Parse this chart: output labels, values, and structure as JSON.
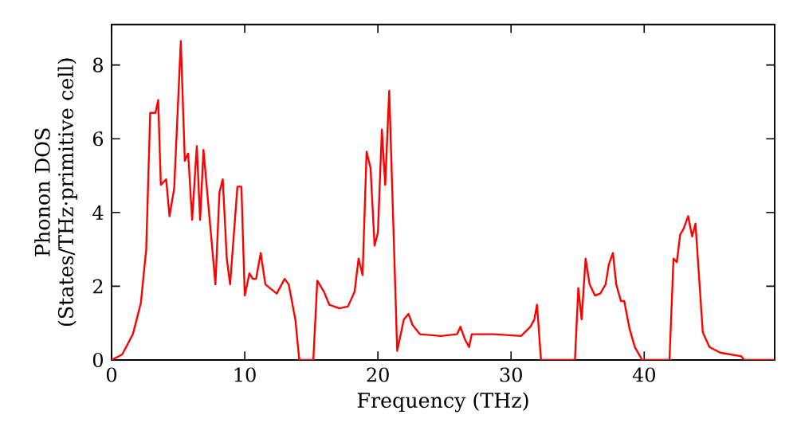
{
  "chart_data": {
    "type": "line",
    "xlabel": "Frequency (THz)",
    "ylabel": "Phonon DOS (States/THz·primitive cell)",
    "xlim": [
      0,
      49.8
    ],
    "ylim": [
      0,
      9.1
    ],
    "xticks": [
      0,
      10,
      20,
      30,
      40
    ],
    "yticks": [
      0,
      2,
      4,
      6,
      8
    ],
    "marker": "none",
    "line_style": "solid",
    "series": [
      {
        "color": "#ff0000",
        "x": [
          0,
          0.8,
          1.6,
          2.2,
          2.6,
          2.9,
          3.3,
          3.5,
          3.7,
          4.1,
          4.35,
          4.7,
          5.2,
          5.5,
          5.75,
          6.05,
          6.4,
          6.65,
          6.9,
          7.8,
          8.1,
          8.35,
          8.65,
          8.9,
          9.45,
          9.75,
          10.0,
          10.35,
          10.6,
          10.85,
          11.2,
          11.55,
          12.4,
          13.0,
          13.3,
          13.8,
          14.1,
          15.15,
          15.45,
          15.95,
          16.35,
          17.1,
          17.75,
          18.25,
          18.55,
          18.85,
          19.15,
          19.45,
          19.75,
          20.0,
          20.3,
          20.55,
          20.85,
          21.45,
          21.95,
          22.3,
          22.6,
          23.15,
          24.75,
          25.95,
          26.2,
          26.55,
          26.85,
          27.05,
          28.7,
          30.75,
          31.45,
          31.75,
          31.95,
          32.25,
          34.8,
          35.05,
          35.3,
          35.6,
          35.9,
          36.3,
          36.7,
          37.1,
          37.35,
          37.65,
          37.9,
          38.25,
          38.5,
          38.9,
          39.3,
          39.85,
          41.9,
          42.2,
          42.45,
          42.7,
          42.95,
          43.3,
          43.6,
          43.85,
          44.4,
          44.9,
          45.7,
          47.3,
          47.5,
          49.8
        ],
        "values": [
          0,
          0.15,
          0.7,
          1.55,
          3.0,
          6.7,
          6.7,
          7.05,
          4.75,
          4.9,
          3.9,
          4.65,
          8.65,
          5.4,
          5.6,
          3.8,
          5.8,
          3.8,
          5.7,
          2.05,
          4.55,
          4.9,
          2.75,
          2.05,
          4.7,
          4.7,
          1.75,
          2.35,
          2.2,
          2.2,
          2.9,
          2.05,
          1.8,
          2.2,
          2.05,
          1.1,
          0,
          0,
          2.15,
          1.85,
          1.5,
          1.4,
          1.45,
          1.85,
          2.75,
          2.3,
          5.65,
          5.2,
          3.1,
          3.45,
          6.25,
          4.75,
          7.3,
          0.25,
          1.1,
          1.25,
          0.95,
          0.7,
          0.65,
          0.7,
          0.9,
          0.55,
          0.35,
          0.7,
          0.7,
          0.65,
          0.9,
          1.1,
          1.5,
          0,
          0,
          1.95,
          1.1,
          2.75,
          2.05,
          1.75,
          1.8,
          2.05,
          2.6,
          2.9,
          2.05,
          1.6,
          1.6,
          0.85,
          0.35,
          0,
          0,
          2.75,
          2.65,
          3.4,
          3.55,
          3.9,
          3.35,
          3.7,
          0.75,
          0.35,
          0.2,
          0.1,
          0,
          0
        ]
      }
    ]
  }
}
